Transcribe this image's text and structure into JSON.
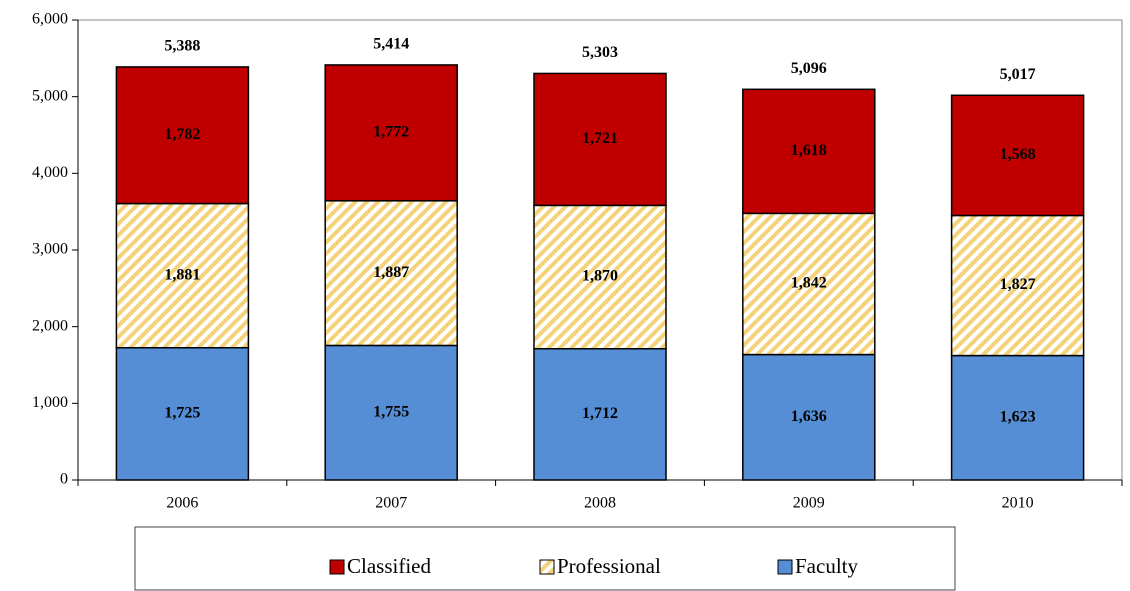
{
  "chart_data": {
    "type": "stacked_bar",
    "categories": [
      "2006",
      "2007",
      "2008",
      "2009",
      "2010"
    ],
    "series": [
      {
        "name": "Faculty",
        "color": "#558ed5",
        "values": [
          1725,
          1755,
          1712,
          1636,
          1623
        ],
        "value_labels": [
          "1,725",
          "1,755",
          "1,712",
          "1,636",
          "1,623"
        ]
      },
      {
        "name": "Professional",
        "color": "#f3d27a",
        "pattern": "hatch",
        "values": [
          1881,
          1887,
          1870,
          1842,
          1827
        ],
        "value_labels": [
          "1,881",
          "1,887",
          "1,870",
          "1,842",
          "1,827"
        ]
      },
      {
        "name": "Classified",
        "color": "#c00000",
        "values": [
          1782,
          1772,
          1721,
          1618,
          1568
        ],
        "value_labels": [
          "1,782",
          "1,772",
          "1,721",
          "1,618",
          "1,568"
        ]
      }
    ],
    "totals": [
      5388,
      5414,
      5303,
      5096,
      5017
    ],
    "total_labels": [
      "5,388",
      "5,414",
      "5,303",
      "5,096",
      "5,017"
    ],
    "ylim": [
      0,
      6000
    ],
    "yticks": [
      0,
      {
        "value": 1000,
        "label": "1,000"
      },
      {
        "value": 2000,
        "label": "2,000"
      },
      {
        "value": 3000,
        "label": "3,000"
      },
      {
        "value": 4000,
        "label": "4,000"
      },
      {
        "value": 5000,
        "label": "5,000"
      },
      {
        "value": 6000,
        "label": "6,000"
      }
    ],
    "legend": "bottom"
  }
}
